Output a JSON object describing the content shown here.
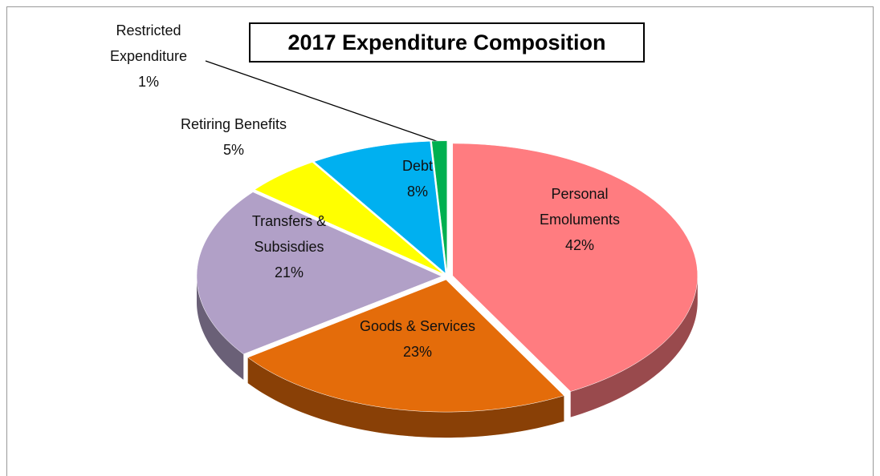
{
  "chart_data": {
    "type": "pie",
    "title": "2017 Expenditure Composition",
    "categories": [
      "Personal Emoluments",
      "Goods & Services",
      "Transfers & Subsisdies",
      "Retiring Benefits",
      "Debt",
      "Restricted Expenditure"
    ],
    "values": [
      42,
      23,
      21,
      5,
      8,
      1
    ],
    "value_labels": [
      "42%",
      "23%",
      "21%",
      "5%",
      "8%",
      "1%"
    ],
    "colors": [
      "#ff7c80",
      "#e46c0a",
      "#b1a0c7",
      "#ffff00",
      "#00b0f0",
      "#00b050"
    ]
  }
}
